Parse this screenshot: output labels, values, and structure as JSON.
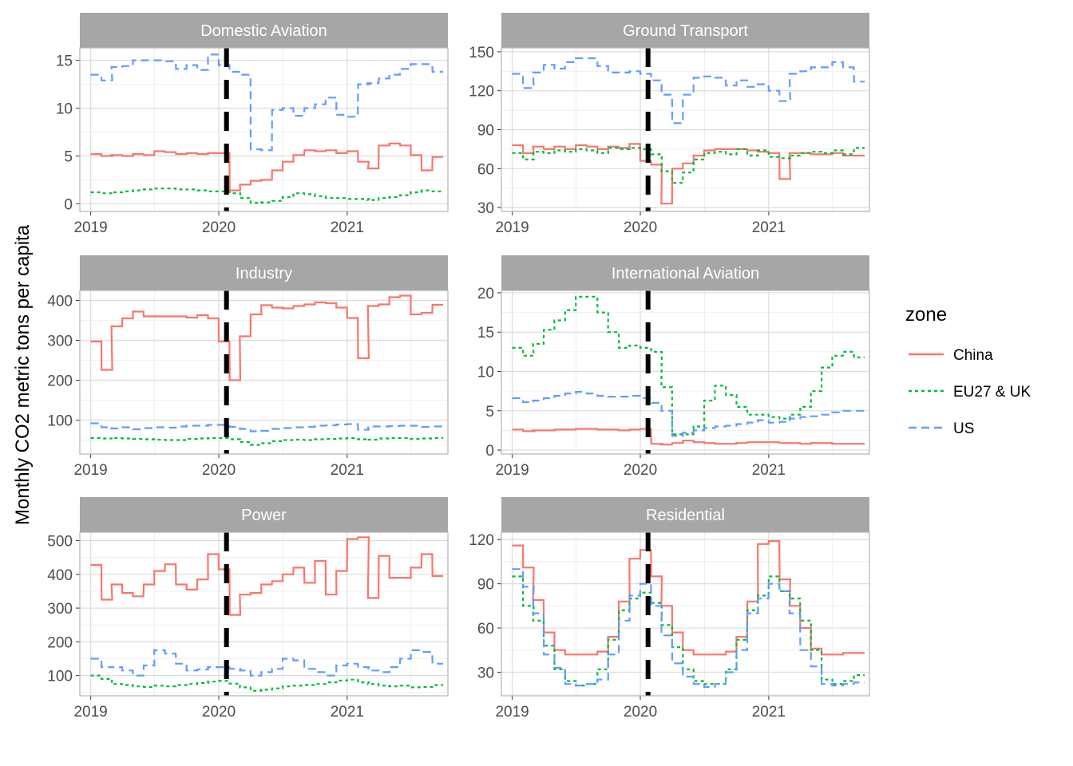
{
  "figure": {
    "ylabel": "Monthly CO2 metric tons per capita",
    "legend_title": "zone",
    "colors": {
      "China": "#F8766D",
      "EU27 & UK": "#00BA38",
      "US": "#619CFF"
    }
  },
  "chart_data": {
    "type": "line",
    "style": "step",
    "facets": [
      "Domestic Aviation",
      "Ground Transport",
      "Industry",
      "International Aviation",
      "Power",
      "Residential"
    ],
    "x": [
      "2019-01",
      "2019-02",
      "2019-03",
      "2019-04",
      "2019-05",
      "2019-06",
      "2019-07",
      "2019-08",
      "2019-09",
      "2019-10",
      "2019-11",
      "2019-12",
      "2020-01",
      "2020-02",
      "2020-03",
      "2020-04",
      "2020-05",
      "2020-06",
      "2020-07",
      "2020-08",
      "2020-09",
      "2020-10",
      "2020-11",
      "2020-12",
      "2021-01",
      "2021-02",
      "2021-03",
      "2021-04",
      "2021-05",
      "2021-06",
      "2021-07",
      "2021-08",
      "2021-09"
    ],
    "xticks": [
      "2019",
      "2020",
      "2021"
    ],
    "xlim": [
      "2018-12-01",
      "2021-10-15"
    ],
    "vline": {
      "x": "2020-01-23",
      "style": "dashed",
      "color": "#000000"
    },
    "legend": {
      "position": "right",
      "entries": [
        "China",
        "EU27 & UK",
        "US"
      ]
    },
    "grid": true,
    "panels": [
      {
        "facet": "Domestic Aviation",
        "ylim": [
          -0.8,
          16.3
        ],
        "yticks": [
          0,
          5,
          10,
          15
        ],
        "series": [
          {
            "name": "China",
            "linetype": "solid",
            "values": [
              5.2,
              5.0,
              5.1,
              5.0,
              5.2,
              5.1,
              5.5,
              5.4,
              5.2,
              5.3,
              5.2,
              5.3,
              5.3,
              1.4,
              2.0,
              2.4,
              2.5,
              3.5,
              4.4,
              5.1,
              5.6,
              5.5,
              5.6,
              5.3,
              5.5,
              4.4,
              3.7,
              6.1,
              6.3,
              6.1,
              5.1,
              3.5,
              4.9
            ]
          },
          {
            "name": "EU27 & UK",
            "linetype": "dotted",
            "values": [
              1.2,
              1.1,
              1.2,
              1.3,
              1.4,
              1.5,
              1.6,
              1.6,
              1.5,
              1.5,
              1.4,
              1.3,
              1.3,
              1.1,
              0.6,
              0.1,
              0.15,
              0.3,
              0.7,
              1.1,
              1.0,
              0.8,
              0.6,
              0.6,
              0.5,
              0.5,
              0.4,
              0.6,
              0.7,
              0.9,
              1.2,
              1.4,
              1.3
            ]
          },
          {
            "name": "US",
            "linetype": "dashed",
            "values": [
              13.5,
              12.9,
              14.3,
              14.4,
              15.0,
              15.0,
              15.0,
              14.9,
              14.1,
              14.5,
              14.0,
              15.6,
              14.5,
              13.8,
              13.5,
              5.7,
              5.6,
              9.8,
              10.0,
              9.2,
              10.0,
              10.4,
              11.1,
              9.3,
              9.1,
              12.5,
              12.6,
              13.1,
              13.5,
              14.1,
              14.6,
              14.6,
              13.8
            ]
          }
        ]
      },
      {
        "facet": "Ground Transport",
        "ylim": [
          27,
          153
        ],
        "yticks": [
          30,
          60,
          90,
          120,
          150
        ],
        "series": [
          {
            "name": "China",
            "linetype": "solid",
            "values": [
              78,
              72,
              77,
              75,
              77,
              75,
              78,
              77,
              75,
              77,
              76,
              79,
              66,
              63,
              33,
              60,
              64,
              70,
              74,
              75,
              75,
              75,
              74,
              73,
              72,
              52,
              72,
              72,
              71,
              71,
              72,
              70,
              70
            ]
          },
          {
            "name": "EU27 & UK",
            "linetype": "dotted",
            "values": [
              72,
              67,
              73,
              72,
              74,
              73,
              75,
              74,
              72,
              76,
              75,
              76,
              75,
              71,
              58,
              49,
              57,
              67,
              72,
              73,
              71,
              75,
              70,
              74,
              69,
              68,
              70,
              72,
              73,
              72,
              74,
              71,
              76
            ]
          },
          {
            "name": "US",
            "linetype": "dashed",
            "values": [
              133,
              122,
              134,
              140,
              137,
              142,
              145,
              145,
              139,
              134,
              134,
              135,
              133,
              128,
              117,
              95,
              117,
              130,
              131,
              130,
              124,
              128,
              123,
              125,
              120,
              112,
              133,
              135,
              138,
              138,
              142,
              138,
              127
            ]
          }
        ]
      },
      {
        "facet": "Industry",
        "ylim": [
          15,
          425
        ],
        "yticks": [
          100,
          200,
          300,
          400
        ],
        "series": [
          {
            "name": "China",
            "linetype": "solid",
            "values": [
              297,
              226,
              335,
              355,
              372,
              360,
              360,
              360,
              360,
              357,
              363,
              355,
              297,
              200,
              310,
              365,
              388,
              382,
              380,
              386,
              390,
              395,
              393,
              382,
              356,
              255,
              386,
              390,
              408,
              412,
              365,
              369,
              389
            ]
          },
          {
            "name": "EU27 & UK",
            "linetype": "dotted",
            "values": [
              55,
              54,
              55,
              54,
              53,
              52,
              51,
              50,
              50,
              53,
              54,
              55,
              55,
              52,
              45,
              38,
              42,
              47,
              50,
              51,
              50,
              52,
              53,
              54,
              55,
              52,
              51,
              54,
              55,
              55,
              53,
              54,
              55
            ]
          },
          {
            "name": "US",
            "linetype": "dashed",
            "values": [
              92,
              82,
              79,
              82,
              77,
              80,
              82,
              81,
              84,
              86,
              86,
              88,
              88,
              83,
              78,
              72,
              73,
              78,
              80,
              82,
              83,
              86,
              87,
              89,
              90,
              76,
              84,
              84,
              85,
              86,
              86,
              83,
              84
            ]
          }
        ]
      },
      {
        "facet": "International Aviation",
        "ylim": [
          -0.5,
          20.3
        ],
        "yticks": [
          0,
          5,
          10,
          15,
          20
        ],
        "series": [
          {
            "name": "China",
            "linetype": "solid",
            "values": [
              2.6,
              2.4,
              2.5,
              2.5,
              2.6,
              2.6,
              2.7,
              2.7,
              2.6,
              2.6,
              2.5,
              2.6,
              2.7,
              0.8,
              0.7,
              0.9,
              1.2,
              1.0,
              0.9,
              0.8,
              0.8,
              0.9,
              1.0,
              1.0,
              1.0,
              0.9,
              0.9,
              0.8,
              0.9,
              0.9,
              0.8,
              0.8,
              0.8
            ]
          },
          {
            "name": "EU27 & UK",
            "linetype": "dotted",
            "values": [
              13.0,
              12.0,
              13.5,
              15.3,
              16.5,
              17.8,
              19.5,
              19.5,
              17.5,
              15.0,
              13.0,
              13.3,
              13.0,
              12.5,
              8.0,
              2.0,
              2.0,
              3.0,
              6.3,
              8.2,
              7.0,
              5.5,
              4.5,
              4.5,
              4.2,
              4.0,
              4.5,
              5.5,
              7.5,
              10.5,
              12.0,
              12.5,
              11.8
            ]
          },
          {
            "name": "US",
            "linetype": "dashed",
            "values": [
              6.6,
              6.1,
              6.3,
              6.6,
              6.9,
              7.2,
              7.4,
              7.2,
              6.9,
              6.8,
              6.8,
              6.9,
              6.6,
              6.0,
              5.0,
              1.8,
              2.2,
              2.5,
              2.8,
              3.0,
              3.1,
              3.3,
              3.5,
              3.8,
              3.5,
              3.6,
              4.0,
              4.2,
              4.3,
              4.5,
              4.8,
              5.0,
              5.0
            ]
          }
        ]
      },
      {
        "facet": "Power",
        "ylim": [
          40,
          525
        ],
        "yticks": [
          100,
          200,
          300,
          400,
          500
        ],
        "series": [
          {
            "name": "China",
            "linetype": "solid",
            "values": [
              428,
              325,
              370,
              345,
              335,
              370,
              410,
              430,
              370,
              355,
              385,
              460,
              415,
              280,
              340,
              345,
              370,
              380,
              400,
              420,
              375,
              440,
              340,
              410,
              505,
              510,
              330,
              455,
              390,
              390,
              420,
              460,
              395
            ]
          },
          {
            "name": "EU27 & UK",
            "linetype": "dotted",
            "values": [
              100,
              90,
              75,
              72,
              68,
              66,
              70,
              68,
              72,
              75,
              78,
              82,
              84,
              76,
              65,
              55,
              58,
              62,
              68,
              70,
              72,
              75,
              80,
              85,
              88,
              80,
              75,
              70,
              68,
              70,
              65,
              66,
              72
            ]
          },
          {
            "name": "US",
            "linetype": "dashed",
            "values": [
              150,
              125,
              125,
              115,
              100,
              130,
              175,
              165,
              135,
              115,
              118,
              125,
              125,
              120,
              115,
              100,
              110,
              120,
              150,
              145,
              120,
              110,
              100,
              130,
              135,
              125,
              115,
              110,
              125,
              150,
              175,
              170,
              135
            ]
          }
        ]
      },
      {
        "facet": "Residential",
        "ylim": [
          14,
          125
        ],
        "yticks": [
          30,
          60,
          90,
          120
        ],
        "series": [
          {
            "name": "China",
            "linetype": "solid",
            "values": [
              116,
              101,
              79,
              57,
              45,
              42,
              42,
              42,
              44,
              54,
              78,
              107,
              113,
              95,
              75,
              57,
              45,
              42,
              42,
              42,
              44,
              54,
              78,
              117,
              119,
              93,
              75,
              60,
              46,
              42,
              42,
              43,
              43
            ]
          },
          {
            "name": "EU27 & UK",
            "linetype": "dotted",
            "values": [
              95,
              75,
              65,
              48,
              32,
              24,
              21,
              22,
              32,
              52,
              72,
              80,
              84,
              77,
              62,
              47,
              32,
              24,
              22,
              22,
              32,
              52,
              72,
              82,
              95,
              85,
              80,
              65,
              45,
              25,
              22,
              24,
              28
            ]
          },
          {
            "name": "US",
            "linetype": "dashed",
            "values": [
              100,
              88,
              70,
              42,
              33,
              22,
              21,
              22,
              25,
              42,
              65,
              82,
              90,
              75,
              55,
              36,
              27,
              22,
              20,
              22,
              30,
              45,
              70,
              80,
              90,
              85,
              70,
              45,
              34,
              22,
              21,
              22,
              23
            ]
          }
        ]
      }
    ]
  }
}
